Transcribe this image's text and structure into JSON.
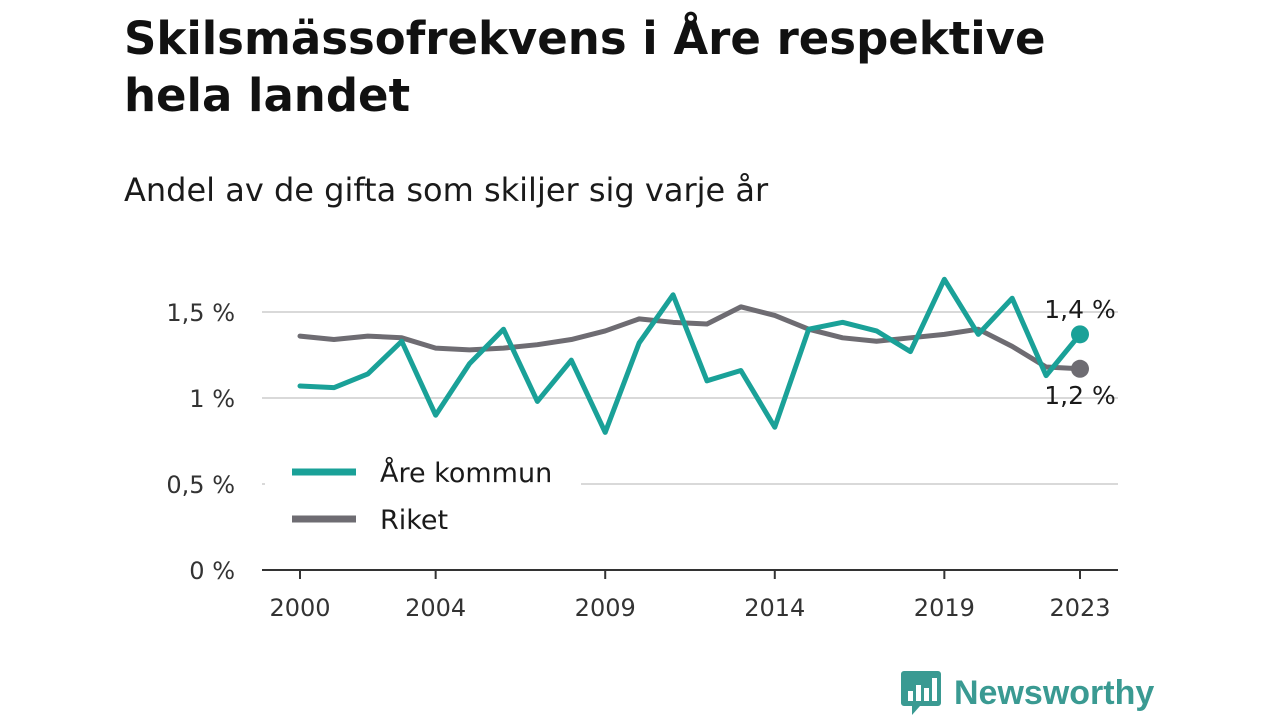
{
  "title": "Skilsmässofrekvens i Åre respektive hela landet",
  "subtitle": "Andel av de gifta som skiljer sig varje år",
  "brand": {
    "name": "Newsworthy",
    "icon": "newsworthy-logo-icon",
    "color": "#3a9a92"
  },
  "chart_data": {
    "type": "line",
    "x": [
      2000,
      2001,
      2002,
      2003,
      2004,
      2005,
      2006,
      2007,
      2008,
      2009,
      2010,
      2011,
      2012,
      2013,
      2014,
      2015,
      2016,
      2017,
      2018,
      2019,
      2020,
      2021,
      2022,
      2023
    ],
    "series": [
      {
        "name": "Åre kommun",
        "color": "#1aa198",
        "values": [
          1.07,
          1.06,
          1.14,
          1.33,
          0.9,
          1.2,
          1.4,
          0.98,
          1.22,
          0.8,
          1.32,
          1.6,
          1.1,
          1.16,
          0.83,
          1.4,
          1.44,
          1.39,
          1.27,
          1.69,
          1.37,
          1.58,
          1.13,
          1.37
        ],
        "end_label": "1,4 %"
      },
      {
        "name": "Riket",
        "color": "#6e6c72",
        "values": [
          1.36,
          1.34,
          1.36,
          1.35,
          1.29,
          1.28,
          1.29,
          1.31,
          1.34,
          1.39,
          1.46,
          1.44,
          1.43,
          1.53,
          1.48,
          1.4,
          1.35,
          1.33,
          1.35,
          1.37,
          1.4,
          1.3,
          1.18,
          1.17
        ],
        "end_label": "1,2 %"
      }
    ],
    "x_ticks": [
      2000,
      2004,
      2009,
      2014,
      2019,
      2023
    ],
    "x_tick_labels": [
      "2000",
      "2004",
      "2009",
      "2014",
      "2019",
      "2023"
    ],
    "y_ticks": [
      0,
      0.5,
      1,
      1.5
    ],
    "y_tick_labels": [
      "0 %",
      "0,5 %",
      "1 %",
      "1,5 %"
    ],
    "ylim": [
      0,
      1.85
    ],
    "xlabel": "",
    "ylabel": "",
    "grid": true,
    "legend": "left"
  }
}
